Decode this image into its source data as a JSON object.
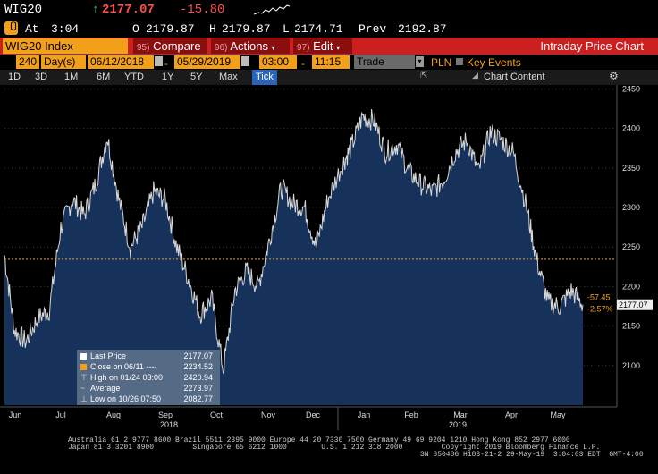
{
  "header": {
    "ticker": "WIG20",
    "last_price": "2177.07",
    "change": "-15.80",
    "at_label": "At",
    "time": "3:04",
    "open_label": "O",
    "open": "2179.87",
    "high_label": "H",
    "high": "2179.87",
    "low_label": "L",
    "low": "2174.71",
    "prev_label": "Prev",
    "prev": "2192.87"
  },
  "toolbar": {
    "security": "WIG20 Index",
    "compare_num": "95)",
    "compare_label": "Compare",
    "actions_num": "96)",
    "actions_label": "Actions",
    "edit_num": "97)",
    "edit_label": "Edit",
    "title": "Intraday Price Chart"
  },
  "params": {
    "period_value": "240",
    "period_unit": "Day(s)",
    "start_date": "06/12/2018",
    "end_date": "05/29/2019",
    "start_time": "03:00",
    "end_time": "11:15",
    "field": "Trade",
    "currency": "PLN",
    "key_events_label": "Key Events"
  },
  "timeframes": [
    "1D",
    "3D",
    "1M",
    "6M",
    "YTD",
    "1Y",
    "5Y",
    "Max",
    "Tick"
  ],
  "chart_content_label": "Chart Content",
  "colors": {
    "accent_orange": "#f2a01a",
    "accent_red": "#cc1f1f",
    "area_fill": "#16325a",
    "price_line": "#d8d8d8",
    "change_neg": "#f2a01a"
  },
  "legend": {
    "rows": [
      {
        "label": "Last Price",
        "value": "2177.07"
      },
      {
        "label": "Close on 06/11 ----",
        "value": "2234.52"
      },
      {
        "label": "High on 01/24 03:00",
        "value": "2420.94"
      },
      {
        "label": "Average",
        "value": "2273.97"
      },
      {
        "label": "Low on 10/26 07:50",
        "value": "2082.77"
      }
    ]
  },
  "chart_data": {
    "type": "line",
    "y_ticks": [
      "2100",
      "2150",
      "2200",
      "2250",
      "2300",
      "2350",
      "2400",
      "2450"
    ],
    "ylim": [
      2050,
      2455
    ],
    "month_labels": [
      "Jun",
      "Jul",
      "Aug",
      "Sep",
      "Oct",
      "Nov",
      "Dec",
      "Jan",
      "Feb",
      "Mar",
      "Apr",
      "May"
    ],
    "year_labels": [
      "2018",
      "2019"
    ],
    "reference_value": 2234.52,
    "last_value_label": "2177.07",
    "change_label": "-57.45",
    "change_pct_label": "-2.57%",
    "x": [
      "2018-06-12",
      "2018-06-18",
      "2018-06-25",
      "2018-07-02",
      "2018-07-09",
      "2018-07-16",
      "2018-07-23",
      "2018-07-30",
      "2018-08-06",
      "2018-08-13",
      "2018-08-20",
      "2018-08-27",
      "2018-09-03",
      "2018-09-10",
      "2018-09-17",
      "2018-09-24",
      "2018-10-01",
      "2018-10-08",
      "2018-10-15",
      "2018-10-22",
      "2018-10-29",
      "2018-11-05",
      "2018-11-12",
      "2018-11-19",
      "2018-11-26",
      "2018-12-03",
      "2018-12-10",
      "2018-12-17",
      "2018-12-24",
      "2019-01-02",
      "2019-01-07",
      "2019-01-14",
      "2019-01-21",
      "2019-01-28",
      "2019-02-04",
      "2019-02-11",
      "2019-02-18",
      "2019-02-25",
      "2019-03-04",
      "2019-03-11",
      "2019-03-18",
      "2019-03-25",
      "2019-04-01",
      "2019-04-08",
      "2019-04-15",
      "2019-04-23",
      "2019-04-29",
      "2019-05-06",
      "2019-05-13",
      "2019-05-20",
      "2019-05-27"
    ],
    "values": [
      2240,
      2145,
      2130,
      2160,
      2170,
      2275,
      2310,
      2290,
      2330,
      2390,
      2310,
      2250,
      2275,
      2320,
      2310,
      2250,
      2210,
      2165,
      2185,
      2095,
      2195,
      2220,
      2200,
      2260,
      2325,
      2305,
      2300,
      2250,
      2310,
      2355,
      2375,
      2415,
      2410,
      2370,
      2380,
      2345,
      2330,
      2320,
      2335,
      2370,
      2385,
      2345,
      2395,
      2385,
      2370,
      2300,
      2235,
      2180,
      2175,
      2195,
      2177
    ]
  },
  "footer": {
    "line1": "Australia 61 2 9777 8600 Brazil 5511 2395 9000 Europe 44 20 7330 7500 Germany 49 69 9204 1210 Hong Kong 852 2977 6000",
    "line2": "Japan 81 3 3201 8900         Singapore 65 6212 1000        U.S. 1 212 318 2000         Copyright 2019 Bloomberg Finance L.P.",
    "line3": "SN 850486 H183-21-2 29-May-19  3:04:03 EDT  GMT-4:00"
  }
}
